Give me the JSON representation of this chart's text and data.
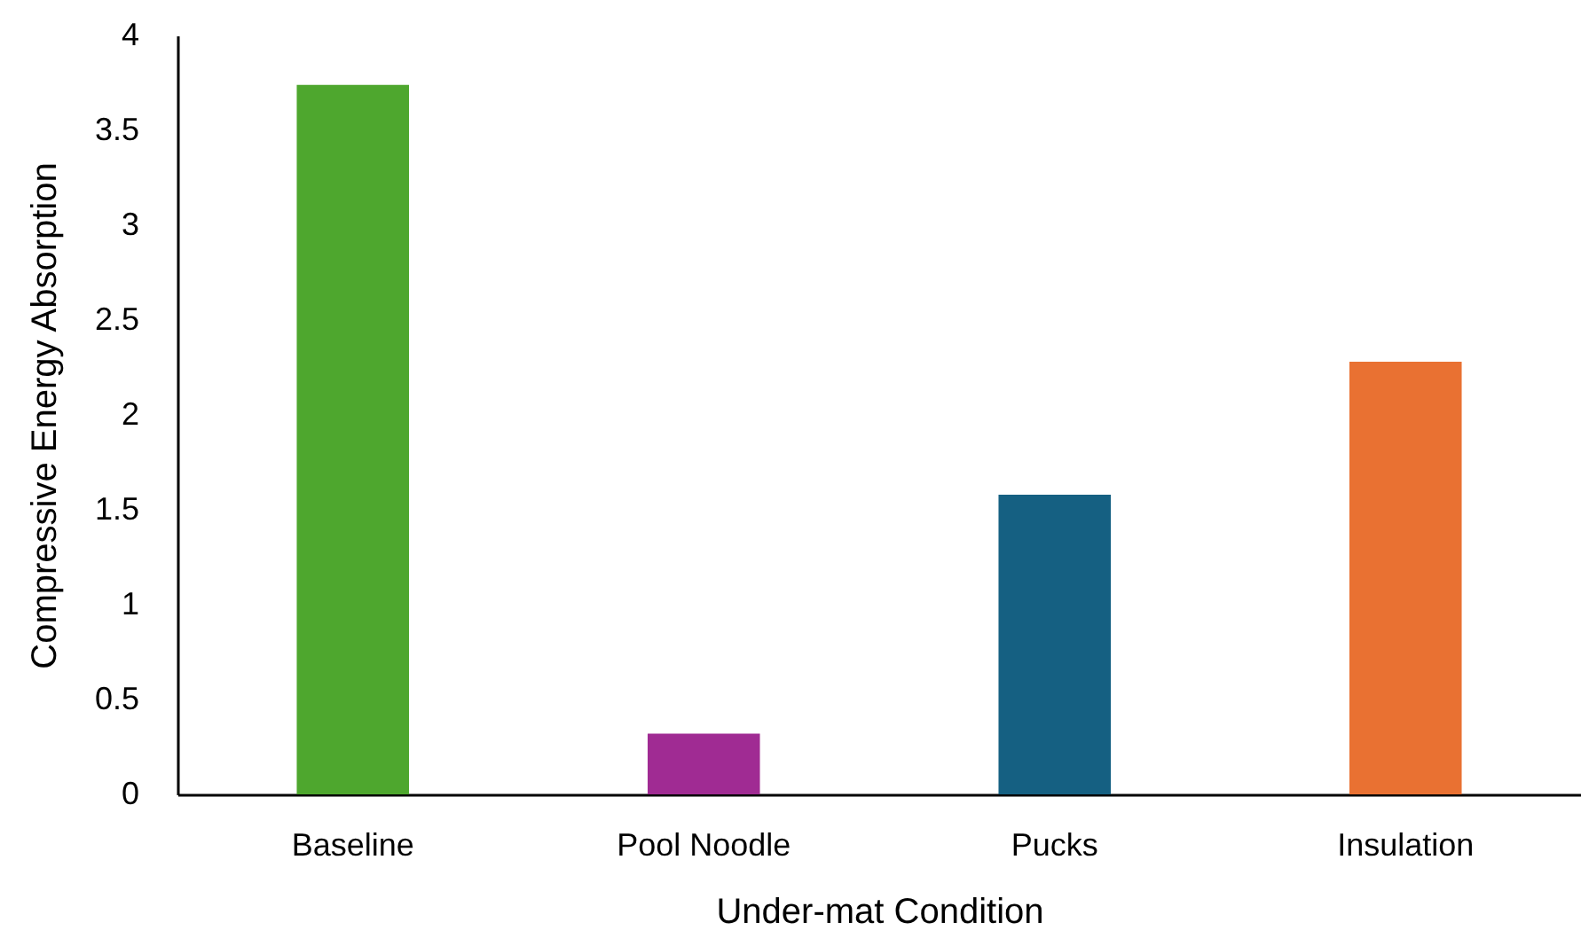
{
  "chart_data": {
    "type": "bar",
    "xlabel": "Under-mat Condition",
    "ylabel": "Compressive Energy Absorption",
    "categories": [
      "Baseline",
      "Pool Noodle",
      "Pucks",
      "Insulation"
    ],
    "values": [
      3.74,
      0.32,
      1.58,
      2.28
    ],
    "colors": [
      "#4ea72e",
      "#a02b93",
      "#156082",
      "#e97132"
    ],
    "ylim": [
      0,
      4
    ],
    "yticks": [
      0,
      0.5,
      1,
      1.5,
      2,
      2.5,
      3,
      3.5,
      4
    ]
  }
}
